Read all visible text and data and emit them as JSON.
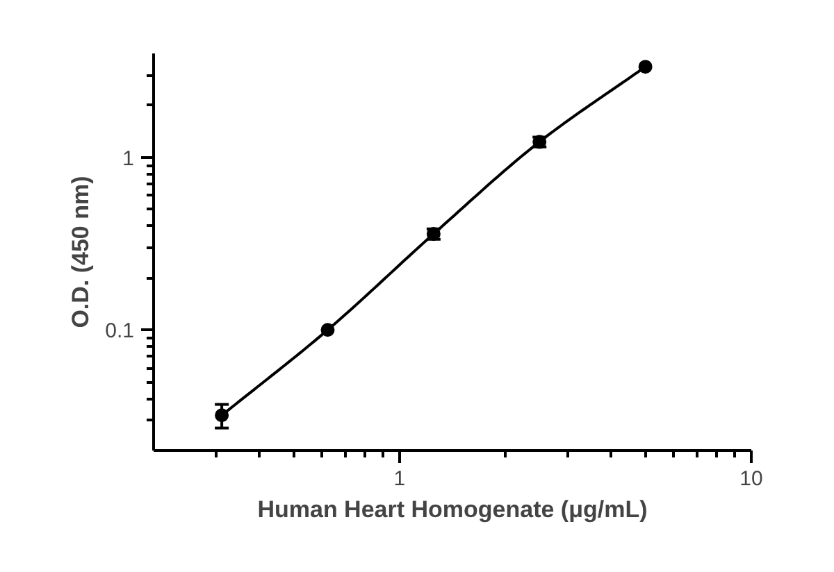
{
  "chart_data": {
    "type": "line",
    "xlabel": "Human Heart Homogenate (μg/mL)",
    "ylabel": "O.D. (450 nm)",
    "x": [
      0.3125,
      0.625,
      1.25,
      2.5,
      5
    ],
    "series": [
      {
        "color": "#000000",
        "values": [
          0.032,
          0.1,
          0.36,
          1.23,
          3.35
        ],
        "errors": [
          0.005,
          null,
          0.025,
          0.08,
          null
        ]
      }
    ],
    "log": "xy",
    "xlim": [
      0.2,
      10
    ],
    "ylim": [
      0.02,
      4
    ],
    "xticks": [
      {
        "value": 0.3,
        "label": null
      },
      {
        "value": 0.4,
        "label": null
      },
      {
        "value": 0.5,
        "label": null
      },
      {
        "value": 0.6,
        "label": null
      },
      {
        "value": 0.7,
        "label": null
      },
      {
        "value": 0.8,
        "label": null
      },
      {
        "value": 0.9,
        "label": null
      },
      1,
      {
        "value": 2,
        "label": null
      },
      {
        "value": 3,
        "label": null
      },
      {
        "value": 4,
        "label": null
      },
      {
        "value": 5,
        "label": null
      },
      {
        "value": 6,
        "label": null
      },
      {
        "value": 7,
        "label": null
      },
      {
        "value": 8,
        "label": null
      },
      {
        "value": 9,
        "label": null
      },
      10
    ],
    "yticks": [
      {
        "value": 0.03,
        "label": null
      },
      {
        "value": 0.04,
        "label": null
      },
      {
        "value": 0.05,
        "label": null
      },
      {
        "value": 0.06,
        "label": null
      },
      {
        "value": 0.07,
        "label": null
      },
      {
        "value": 0.08,
        "label": null
      },
      {
        "value": 0.09,
        "label": null
      },
      0.1,
      {
        "value": 0.2,
        "label": null
      },
      {
        "value": 0.3,
        "label": null
      },
      {
        "value": 0.4,
        "label": null
      },
      {
        "value": 0.5,
        "label": null
      },
      {
        "value": 0.6,
        "label": null
      },
      {
        "value": 0.7,
        "label": null
      },
      {
        "value": 0.8,
        "label": null
      },
      {
        "value": 0.9,
        "label": null
      },
      1,
      {
        "value": 2,
        "label": null
      },
      {
        "value": 3,
        "label": null
      }
    ],
    "grid": false,
    "marker": "circle",
    "line_style": "solid"
  }
}
